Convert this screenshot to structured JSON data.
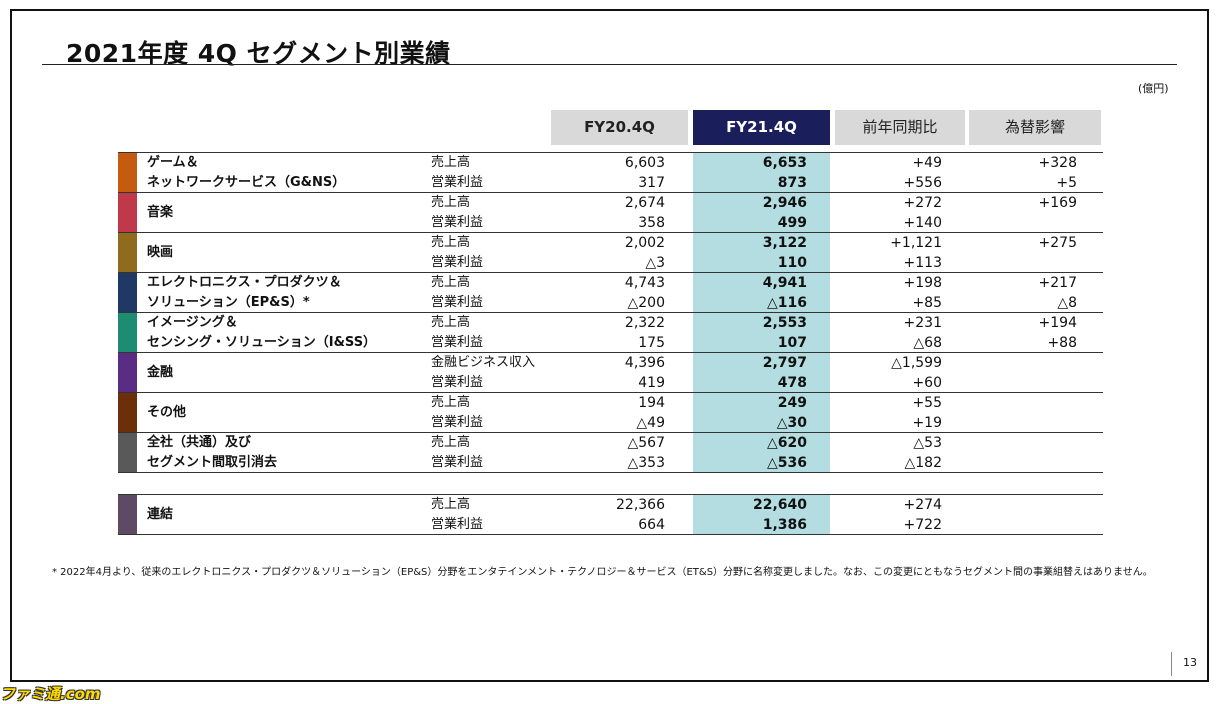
{
  "slide": {
    "title": "2021年度 4Q セグメント別業績",
    "unit": "(億円)",
    "page_number": "13",
    "footnote": "* 2022年4月より、従来のエレクトロニクス・プロダクツ＆ソリューション（EP&S）分野をエンタテインメント・テクノロジー＆サービス（ET&S）分野に名称変更しました。なお、この変更にともなうセグメント間の事業組替えはありません。",
    "watermark": "ファミ通.com"
  },
  "headers": {
    "fy20": "FY20.4Q",
    "fy21": "FY21.4Q",
    "yoy": "前年同期比",
    "fx": "為替影響"
  },
  "colors": {
    "highlight_column": "#b4dde1",
    "header_active": "#1a1f5c",
    "header_inactive": "#d9d9d9"
  },
  "segments": [
    {
      "name": "ゲーム＆\nネットワークサービス（G&NS）",
      "color": "#c55a11",
      "rows": [
        {
          "metric": "売上高",
          "fy20": "6,603",
          "fy21": "6,653",
          "yoy": "+49",
          "fx": "+328"
        },
        {
          "metric": "営業利益",
          "fy20": "317",
          "fy21": "873",
          "yoy": "+556",
          "fx": "+5"
        }
      ]
    },
    {
      "name": "音楽",
      "color": "#c0394b",
      "rows": [
        {
          "metric": "売上高",
          "fy20": "2,674",
          "fy21": "2,946",
          "yoy": "+272",
          "fx": "+169"
        },
        {
          "metric": "営業利益",
          "fy20": "358",
          "fy21": "499",
          "yoy": "+140",
          "fx": ""
        }
      ]
    },
    {
      "name": "映画",
      "color": "#8f6b1e",
      "rows": [
        {
          "metric": "売上高",
          "fy20": "2,002",
          "fy21": "3,122",
          "yoy": "+1,121",
          "fx": "+275"
        },
        {
          "metric": "営業利益",
          "fy20": "△3",
          "fy21": "110",
          "yoy": "+113",
          "fx": ""
        }
      ]
    },
    {
      "name": "エレクトロニクス・プロダクツ＆\nソリューション（EP&S）*",
      "color": "#1f3864",
      "rows": [
        {
          "metric": "売上高",
          "fy20": "4,743",
          "fy21": "4,941",
          "yoy": "+198",
          "fx": "+217"
        },
        {
          "metric": "営業利益",
          "fy20": "△200",
          "fy21": "△116",
          "yoy": "+85",
          "fx": "△8"
        }
      ]
    },
    {
      "name": "イメージング＆\nセンシング・ソリューション（I&SS）",
      "color": "#1e8c73",
      "rows": [
        {
          "metric": "売上高",
          "fy20": "2,322",
          "fy21": "2,553",
          "yoy": "+231",
          "fx": "+194"
        },
        {
          "metric": "営業利益",
          "fy20": "175",
          "fy21": "107",
          "yoy": "△68",
          "fx": "+88"
        }
      ]
    },
    {
      "name": "金融",
      "color": "#5b2c83",
      "rows": [
        {
          "metric": "金融ビジネス収入",
          "fy20": "4,396",
          "fy21": "2,797",
          "yoy": "△1,599",
          "fx": ""
        },
        {
          "metric": "営業利益",
          "fy20": "419",
          "fy21": "478",
          "yoy": "+60",
          "fx": ""
        }
      ]
    },
    {
      "name": "その他",
      "color": "#6b2f0a",
      "rows": [
        {
          "metric": "売上高",
          "fy20": "194",
          "fy21": "249",
          "yoy": "+55",
          "fx": ""
        },
        {
          "metric": "営業利益",
          "fy20": "△49",
          "fy21": "△30",
          "yoy": "+19",
          "fx": ""
        }
      ]
    },
    {
      "name": "全社（共通）及び\nセグメント間取引消去",
      "color": "#595959",
      "rows": [
        {
          "metric": "売上高",
          "fy20": "△567",
          "fy21": "△620",
          "yoy": "△53",
          "fx": ""
        },
        {
          "metric": "営業利益",
          "fy20": "△353",
          "fy21": "△536",
          "yoy": "△182",
          "fx": ""
        }
      ]
    }
  ],
  "consolidated": {
    "name": "連結",
    "color": "#5f4a66",
    "rows": [
      {
        "metric": "売上高",
        "fy20": "22,366",
        "fy21": "22,640",
        "yoy": "+274",
        "fx": ""
      },
      {
        "metric": "営業利益",
        "fy20": "664",
        "fy21": "1,386",
        "yoy": "+722",
        "fx": ""
      }
    ]
  }
}
